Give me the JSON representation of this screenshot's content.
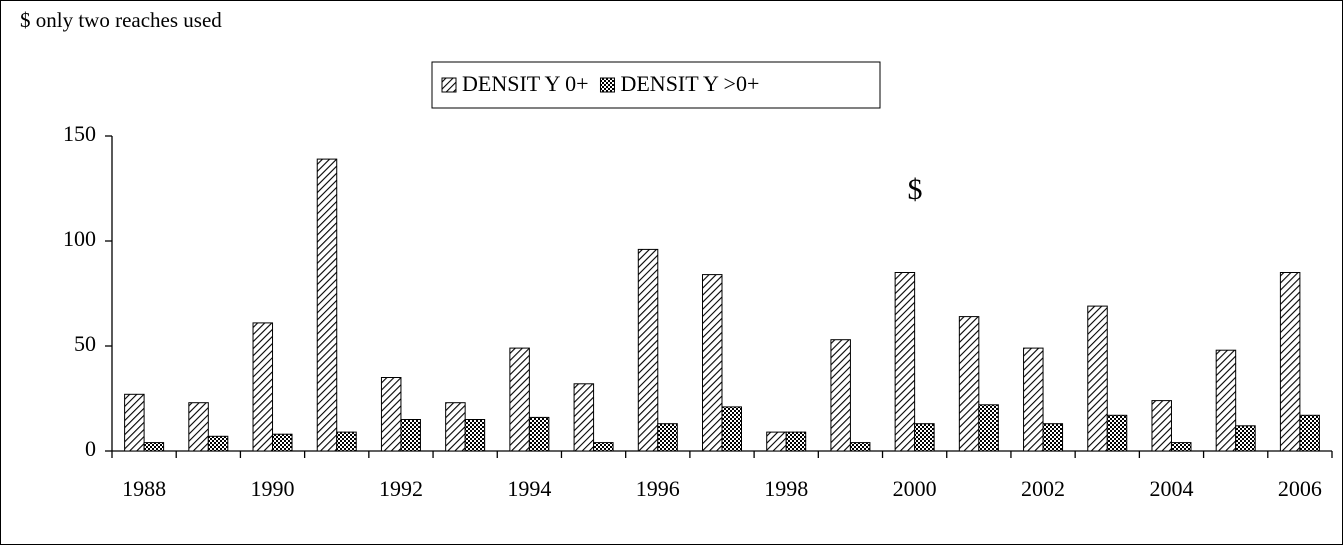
{
  "chart_data": {
    "type": "bar",
    "subtitle": "$ only two reaches used",
    "annotation": "$",
    "categories": [
      "1988",
      null,
      "1990",
      null,
      "1992",
      null,
      "1994",
      null,
      "1996",
      null,
      "1998",
      null,
      "2000",
      null,
      "2002",
      null,
      "2004",
      null,
      "2006"
    ],
    "series": [
      {
        "name": "DENSIT Y 0+",
        "color": "#000000",
        "pattern": "hatch",
        "values": [
          27,
          23,
          61,
          139,
          35,
          23,
          49,
          32,
          96,
          84,
          9,
          53,
          85,
          64,
          49,
          69,
          24,
          48,
          85
        ]
      },
      {
        "name": "DENSIT Y >0+",
        "color": "#000000",
        "pattern": "crosshatch",
        "values": [
          4,
          7,
          8,
          9,
          15,
          15,
          16,
          4,
          13,
          21,
          9,
          4,
          13,
          22,
          13,
          17,
          4,
          12,
          17
        ]
      }
    ],
    "ylim": [
      0,
      150
    ],
    "yticks": [
      0,
      50,
      100,
      150
    ],
    "grid": false,
    "legend": "top"
  }
}
